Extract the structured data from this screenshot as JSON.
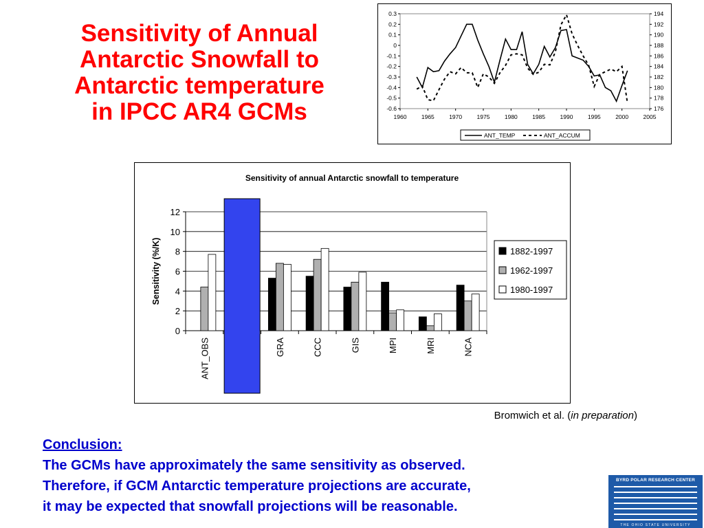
{
  "slide": {
    "title_lines": [
      "Sensitivity of Annual",
      "Antarctic Snowfall to",
      "Antarctic temperature",
      "in  IPCC AR4 GCMs"
    ],
    "citation": {
      "prefix": "Bromwich et al. (",
      "italic": "in preparation",
      "suffix": ")"
    },
    "conclusion": {
      "heading": "Conclusion:",
      "lines": [
        "The GCMs have approximately the same sensitivity as observed.",
        "Therefore, if GCM Antarctic temperature projections are accurate,",
        "it may be expected that snowfall projections will be reasonable."
      ]
    },
    "logo": {
      "title": "BYRD POLAR RESEARCH CENTER",
      "subtitle": "THE OHIO STATE UNIVERSITY"
    },
    "colors": {
      "title": "#ff0000",
      "conclusion": "#0000cc",
      "highlight_bar": "#3344ee",
      "logo": "#1e5aa8"
    }
  },
  "chart_data": [
    {
      "type": "line",
      "title": "",
      "xlabel": "",
      "ylabel": "",
      "y2label": "",
      "xlim": [
        1960,
        2005
      ],
      "xticks": [
        "1960",
        "1965",
        "1970",
        "1975",
        "1980",
        "1985",
        "1990",
        "1995",
        "2000",
        "2005"
      ],
      "ylim": [
        -0.6,
        0.3
      ],
      "yticks": [
        "0.3",
        "0.2",
        "0.1",
        "0",
        "-0.1",
        "-0.2",
        "-0.3",
        "-0.4",
        "-0.5",
        "-0.6"
      ],
      "y2lim": [
        176,
        194
      ],
      "y2ticks": [
        "194",
        "192",
        "190",
        "188",
        "186",
        "184",
        "182",
        "180",
        "178",
        "176"
      ],
      "grid": false,
      "legend": "bottom",
      "series": [
        {
          "name": "ANT_TEMP",
          "axis": "left",
          "style": "solid",
          "x": [
            1963,
            1964,
            1965,
            1966,
            1967,
            1968,
            1969,
            1970,
            1971,
            1972,
            1973,
            1974,
            1975,
            1976,
            1977,
            1978,
            1979,
            1980,
            1981,
            1982,
            1983,
            1984,
            1985,
            1986,
            1987,
            1988,
            1989,
            1990,
            1991,
            1992,
            1993,
            1994,
            1995,
            1996,
            1997,
            1998,
            1999,
            2000,
            2001
          ],
          "y": [
            -0.3,
            -0.4,
            -0.21,
            -0.25,
            -0.24,
            -0.15,
            -0.08,
            -0.02,
            0.09,
            0.2,
            0.2,
            0.05,
            -0.08,
            -0.2,
            -0.35,
            -0.14,
            0.06,
            -0.04,
            -0.04,
            0.13,
            -0.18,
            -0.27,
            -0.18,
            -0.01,
            -0.11,
            -0.02,
            0.14,
            0.15,
            -0.1,
            -0.12,
            -0.14,
            -0.2,
            -0.29,
            -0.28,
            -0.4,
            -0.43,
            -0.53,
            -0.38,
            -0.24
          ]
        },
        {
          "name": "ANT_ACCUM",
          "axis": "right",
          "style": "dashed",
          "x": [
            1963,
            1964,
            1965,
            1966,
            1967,
            1968,
            1969,
            1970,
            1971,
            1972,
            1973,
            1974,
            1975,
            1976,
            1977,
            1978,
            1979,
            1980,
            1981,
            1982,
            1983,
            1984,
            1985,
            1986,
            1987,
            1988,
            1989,
            1990,
            1991,
            1992,
            1993,
            1994,
            1995,
            1996,
            1997,
            1998,
            1999,
            2000,
            2001
          ],
          "y": [
            179.7,
            180.3,
            177.7,
            177.5,
            179.6,
            181.6,
            183.0,
            182.6,
            183.8,
            182.8,
            182.8,
            180.0,
            182.6,
            182.0,
            180.8,
            182.8,
            184.2,
            186.2,
            186.4,
            186.2,
            183.7,
            182.5,
            182.9,
            184.4,
            184.3,
            186.8,
            191.9,
            193.8,
            190.2,
            188.0,
            186.0,
            184.2,
            180.2,
            182.5,
            183.0,
            183.5,
            183.0,
            184.0,
            177.0
          ]
        }
      ]
    },
    {
      "type": "bar",
      "title": "Sensitivity of annual Antarctic snowfall to temperature",
      "xlabel": "",
      "ylabel": "Sensitivity   (%/K)",
      "ylim": [
        0,
        12
      ],
      "yticks": [
        "0",
        "2",
        "4",
        "6",
        "8",
        "10",
        "12"
      ],
      "legend": "right",
      "categories": [
        "ANT_OBS",
        "",
        "GRA",
        "CCC",
        "GIS",
        "MPI",
        "MRI",
        "NCA"
      ],
      "series": [
        {
          "name": "1882-1997",
          "color": "#000000",
          "values": [
            null,
            null,
            5.3,
            5.5,
            4.4,
            4.9,
            1.4,
            4.6
          ]
        },
        {
          "name": "1962-1997",
          "color": "#b0b0b0",
          "values": [
            4.4,
            null,
            6.8,
            7.2,
            4.9,
            1.8,
            0.5,
            3.0
          ]
        },
        {
          "name": "1980-1997",
          "color": "#ffffff",
          "values": [
            7.7,
            null,
            6.7,
            8.3,
            5.9,
            2.1,
            1.7,
            3.7
          ]
        }
      ],
      "highlight": {
        "category_index": 1,
        "color": "#3344ee"
      }
    }
  ]
}
